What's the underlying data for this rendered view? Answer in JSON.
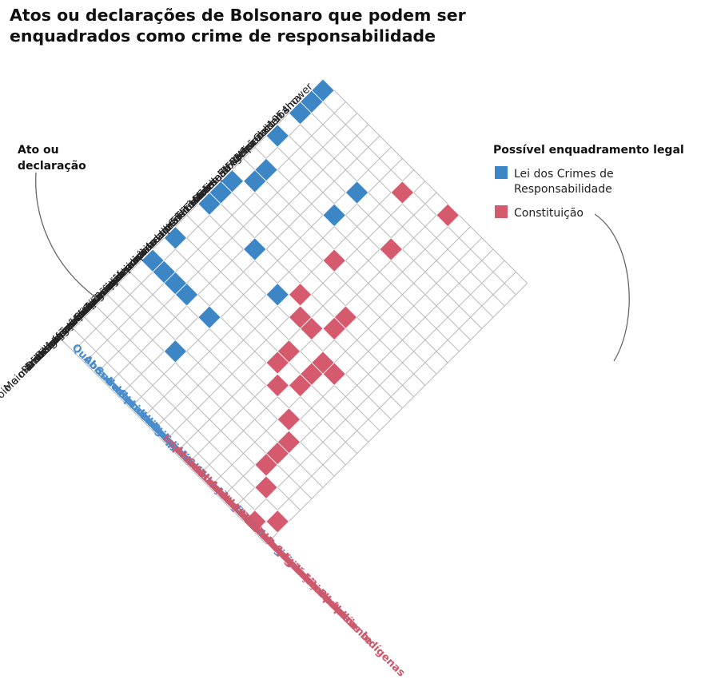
{
  "title_line1": "Atos ou declarações de Bolsonaro que podem ser",
  "title_line2": "enquadrados como crime de responsabilidade",
  "chart_data": {
    "type": "heatmap",
    "rows_label_line1": "Ato ou",
    "rows_label_line2": "declaração",
    "legend_title": "Possível enquadramento legal",
    "legend": [
      {
        "key": "lei",
        "label_line1": "Lei dos Crimes de",
        "label_line2": "Responsabilidade",
        "color": "#3d86c6"
      },
      {
        "key": "const",
        "label_line1": "Constituição",
        "label_line2": "",
        "color": "#d65a6e"
      }
    ],
    "rows": [
      "Golden shower",
      "Exoneração de fiscal do Ibama",
      "Defesa do golpe de 1964",
      "Venezuela",
      "Censura",
      "Crise EUA x Irã",
      "Motim da PM",
      "Interferência na PF",
      "Caso Marielle",
      "Manifestações antidemocráticas de ministros",
      "Reação armada a prefeitos",
      "Ameaça contra decisão de ministro do STF",
      "Ameaça a procuradores",
      "Discriminação a órgãos de imprensa",
      "Ataques a jornalistas",
      "Apoio a manifestações antidemocráticas",
      "Coronavírus",
      "Infrações de trânsito",
      "Eleições",
      "Homofobia",
      "Reforma agrária",
      "Indígenas",
      "Meio ambiente"
    ],
    "columns": [
      {
        "label": "Quebra de decoro",
        "group": "lei"
      },
      {
        "label": "Abuso de poder",
        "group": "lei"
      },
      {
        "label": "Subverter ordem política",
        "group": "lei"
      },
      {
        "label": "Incitar militares",
        "group": "lei"
      },
      {
        "label": "Constranger juiz",
        "group": "lei"
      },
      {
        "label": "Livre exercício do voto",
        "group": "lei"
      },
      {
        "label": "Hostilidade contra nação estrangeira",
        "group": "lei"
      },
      {
        "label": "Responsabilização dos subordinados",
        "group": "lei"
      },
      {
        "label": "Impessoalidade",
        "group": "const"
      },
      {
        "label": "Atentar contra livre exercício dos Poderes",
        "group": "const"
      },
      {
        "label": "Censura",
        "group": "const"
      },
      {
        "label": "Atentado contra a segurança do país",
        "group": "const"
      },
      {
        "label": "Ameaça contra funcionário público",
        "group": "const"
      },
      {
        "label": "Atentado contra direitos",
        "group": "const"
      },
      {
        "label": "Atentado contra leis",
        "group": "const"
      },
      {
        "label": "Reforma Agrária",
        "group": "const"
      },
      {
        "label": "Proteção ao meio ambiente",
        "group": "const"
      },
      {
        "label": "Demarcação de terras indígenas",
        "group": "const"
      }
    ],
    "filled": [
      {
        "act": "Golden shower",
        "law": "Quebra de decoro"
      },
      {
        "act": "Exoneração de fiscal do Ibama",
        "law": "Quebra de decoro"
      },
      {
        "act": "Defesa do golpe de 1964",
        "law": "Quebra de decoro"
      },
      {
        "act": "Censura",
        "law": "Quebra de decoro"
      },
      {
        "act": "Caso Marielle",
        "law": "Quebra de decoro"
      },
      {
        "act": "Manifestações antidemocráticas de ministros",
        "law": "Quebra de decoro"
      },
      {
        "act": "Reação armada a prefeitos",
        "law": "Quebra de decoro"
      },
      {
        "act": "Discriminação a órgãos de imprensa",
        "law": "Quebra de decoro"
      },
      {
        "act": "Apoio a manifestações antidemocráticas",
        "law": "Quebra de decoro"
      },
      {
        "act": "Motim da PM",
        "law": "Abuso de poder"
      },
      {
        "act": "Interferência na PF",
        "law": "Abuso de poder"
      },
      {
        "act": "Apoio a manifestações antidemocráticas",
        "law": "Abuso de poder"
      },
      {
        "act": "Apoio a manifestações antidemocráticas",
        "law": "Subverter ordem política"
      },
      {
        "act": "Apoio a manifestações antidemocráticas",
        "law": "Incitar militares"
      },
      {
        "act": "Reação armada a prefeitos",
        "law": "Constranger juiz"
      },
      {
        "act": "Apoio a manifestações antidemocráticas",
        "law": "Livre exercício do voto"
      },
      {
        "act": "Eleições",
        "law": "Livre exercício do voto"
      },
      {
        "act": "Venezuela",
        "law": "Hostilidade contra nação estrangeira"
      },
      {
        "act": "Crise EUA x Irã",
        "law": "Hostilidade contra nação estrangeira"
      },
      {
        "act": "Ameaça contra decisão de ministro do STF",
        "law": "Responsabilização dos subordinados"
      },
      {
        "act": "Exoneração de fiscal do Ibama",
        "law": "Impessoalidade"
      },
      {
        "act": "Interferência na PF",
        "law": "Impessoalidade"
      },
      {
        "act": "Reação armada a prefeitos",
        "law": "Impessoalidade"
      },
      {
        "act": "Ameaça contra decisão de ministro do STF",
        "law": "Atentar contra livre exercício dos Poderes"
      },
      {
        "act": "Ameaça contra decisão de ministro do STF",
        "law": "Censura"
      },
      {
        "act": "Censura",
        "law": "Censura"
      },
      {
        "act": "Discriminação a órgãos de imprensa",
        "law": "Censura"
      },
      {
        "act": "Ataques a jornalistas",
        "law": "Censura"
      },
      {
        "act": "Golden shower",
        "law": "Atentado contra a segurança do país"
      },
      {
        "act": "Manifestações antidemocráticas de ministros",
        "law": "Atentado contra a segurança do país"
      },
      {
        "act": "Apoio a manifestações antidemocráticas",
        "law": "Atentado contra a segurança do país"
      },
      {
        "act": "Reação armada a prefeitos",
        "law": "Atentado contra a segurança do país"
      },
      {
        "act": "Ameaça a procuradores",
        "law": "Ameaça contra funcionário público"
      },
      {
        "act": "Discriminação a órgãos de imprensa",
        "law": "Ameaça contra funcionário público"
      },
      {
        "act": "Ataques a jornalistas",
        "law": "Ameaça contra funcionário público"
      },
      {
        "act": "Ameaça a procuradores",
        "law": "Atentado contra direitos"
      },
      {
        "act": "Coronavírus",
        "law": "Atentado contra direitos"
      },
      {
        "act": "Infrações de trânsito",
        "law": "Atentado contra leis"
      },
      {
        "act": "Eleições",
        "law": "Atentado contra leis"
      },
      {
        "act": "Homofobia",
        "law": "Atentado contra leis"
      },
      {
        "act": "Reforma agrária",
        "law": "Reforma Agrária"
      },
      {
        "act": "Meio ambiente",
        "law": "Proteção ao meio ambiente"
      },
      {
        "act": "Indígenas",
        "law": "Demarcação de terras indígenas"
      }
    ]
  }
}
